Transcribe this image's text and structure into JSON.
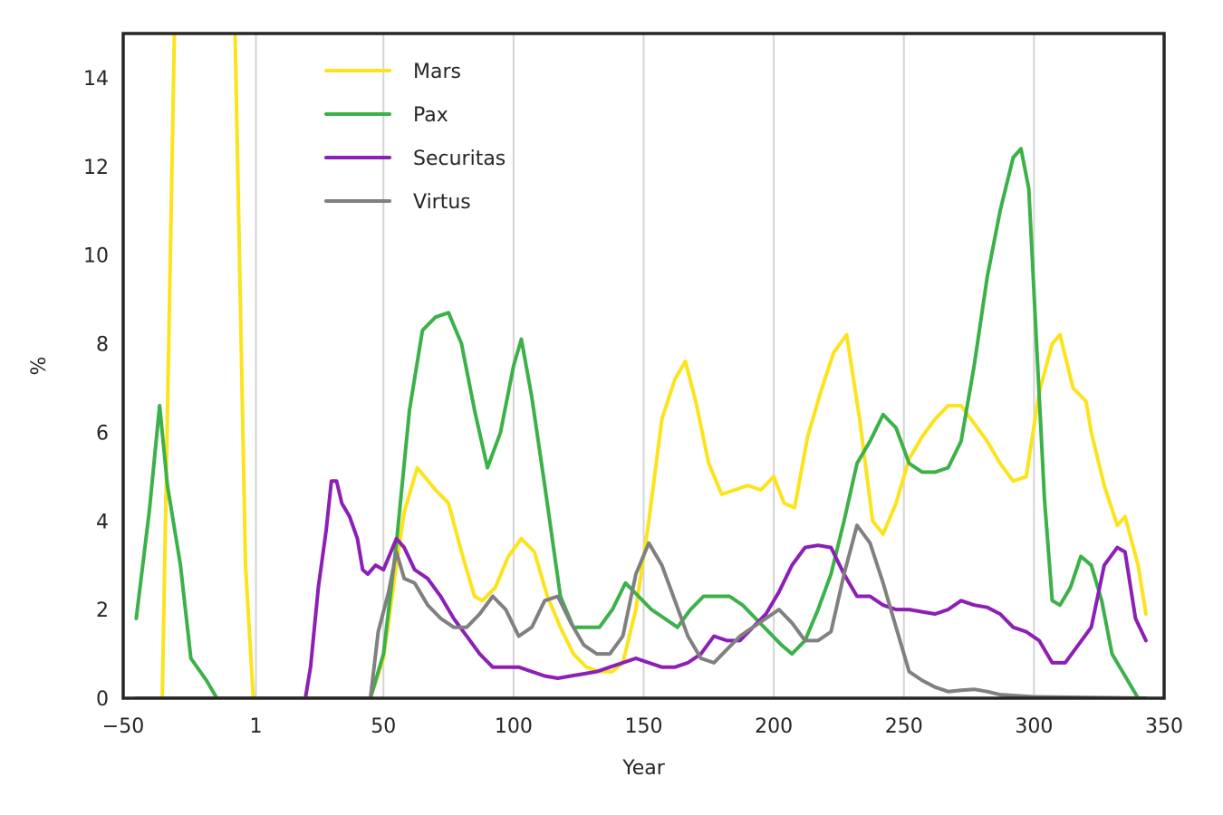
{
  "chart_data": {
    "type": "line",
    "xlabel": "Year",
    "ylabel": "%",
    "xlim": [
      -50,
      350
    ],
    "ylim": [
      0,
      15
    ],
    "xticks": [
      -50,
      1,
      50,
      100,
      150,
      200,
      250,
      300,
      350
    ],
    "xtick_labels": [
      "−50",
      "1",
      "50",
      "100",
      "150",
      "200",
      "250",
      "300",
      "350"
    ],
    "yticks": [
      0,
      2,
      4,
      6,
      8,
      10,
      12,
      14
    ],
    "ytick_labels": [
      "0",
      "2",
      "4",
      "6",
      "8",
      "10",
      "12",
      "14"
    ],
    "grid": {
      "vertical": true,
      "horizontal": false
    },
    "legend_position": "top-left",
    "series": [
      {
        "name": "Mars",
        "color": "#fce31c",
        "points": [
          [
            -45,
            0
          ],
          [
            -35,
            0
          ],
          [
            -30,
            16
          ],
          [
            -20,
            30
          ],
          [
            -10,
            30
          ],
          [
            -7,
            15
          ],
          [
            -3,
            3
          ],
          [
            0,
            0
          ],
          [
            20,
            0
          ],
          [
            45,
            0
          ],
          [
            50,
            0.9
          ],
          [
            55,
            3
          ],
          [
            58,
            4.2
          ],
          [
            63,
            5.2
          ],
          [
            70,
            4.7
          ],
          [
            75,
            4.4
          ],
          [
            80,
            3.3
          ],
          [
            85,
            2.3
          ],
          [
            88,
            2.2
          ],
          [
            93,
            2.5
          ],
          [
            98,
            3.2
          ],
          [
            103,
            3.6
          ],
          [
            108,
            3.3
          ],
          [
            113,
            2.3
          ],
          [
            118,
            1.6
          ],
          [
            123,
            1.0
          ],
          [
            128,
            0.7
          ],
          [
            133,
            0.6
          ],
          [
            138,
            0.6
          ],
          [
            142,
            0.8
          ],
          [
            147,
            2.0
          ],
          [
            152,
            4.0
          ],
          [
            157,
            6.3
          ],
          [
            162,
            7.2
          ],
          [
            166,
            7.6
          ],
          [
            170,
            6.7
          ],
          [
            175,
            5.3
          ],
          [
            180,
            4.6
          ],
          [
            185,
            4.7
          ],
          [
            190,
            4.8
          ],
          [
            195,
            4.7
          ],
          [
            200,
            5.0
          ],
          [
            204,
            4.4
          ],
          [
            208,
            4.3
          ],
          [
            213,
            5.9
          ],
          [
            218,
            6.9
          ],
          [
            223,
            7.8
          ],
          [
            228,
            8.2
          ],
          [
            233,
            6.3
          ],
          [
            238,
            4.0
          ],
          [
            242,
            3.7
          ],
          [
            247,
            4.4
          ],
          [
            252,
            5.4
          ],
          [
            257,
            5.9
          ],
          [
            262,
            6.3
          ],
          [
            267,
            6.6
          ],
          [
            272,
            6.6
          ],
          [
            277,
            6.2
          ],
          [
            282,
            5.8
          ],
          [
            287,
            5.3
          ],
          [
            292,
            4.9
          ],
          [
            297,
            5.0
          ],
          [
            302,
            6.9
          ],
          [
            307,
            8.0
          ],
          [
            310,
            8.2
          ],
          [
            315,
            7.0
          ],
          [
            320,
            6.7
          ],
          [
            322,
            6.0
          ],
          [
            327,
            4.8
          ],
          [
            332,
            3.9
          ],
          [
            335,
            4.1
          ],
          [
            340,
            3.0
          ],
          [
            343,
            1.9
          ]
        ]
      },
      {
        "name": "Pax",
        "color": "#3cb149",
        "points": [
          [
            -45,
            1.8
          ],
          [
            -40,
            4.2
          ],
          [
            -36,
            6.6
          ],
          [
            -33,
            4.8
          ],
          [
            -28,
            3.0
          ],
          [
            -24,
            0.9
          ],
          [
            -18,
            0.4
          ],
          [
            -14,
            0
          ],
          [
            20,
            0
          ],
          [
            45,
            0
          ],
          [
            50,
            1.0
          ],
          [
            55,
            3.5
          ],
          [
            60,
            6.5
          ],
          [
            65,
            8.3
          ],
          [
            70,
            8.6
          ],
          [
            75,
            8.7
          ],
          [
            80,
            8.0
          ],
          [
            85,
            6.5
          ],
          [
            90,
            5.2
          ],
          [
            95,
            6.0
          ],
          [
            100,
            7.5
          ],
          [
            103,
            8.1
          ],
          [
            107,
            6.8
          ],
          [
            112,
            4.8
          ],
          [
            118,
            2.3
          ],
          [
            123,
            1.6
          ],
          [
            128,
            1.6
          ],
          [
            133,
            1.6
          ],
          [
            138,
            2.0
          ],
          [
            143,
            2.6
          ],
          [
            148,
            2.3
          ],
          [
            153,
            2.0
          ],
          [
            158,
            1.8
          ],
          [
            163,
            1.6
          ],
          [
            168,
            2.0
          ],
          [
            173,
            2.3
          ],
          [
            178,
            2.3
          ],
          [
            183,
            2.3
          ],
          [
            188,
            2.1
          ],
          [
            193,
            1.8
          ],
          [
            198,
            1.5
          ],
          [
            203,
            1.2
          ],
          [
            207,
            1.0
          ],
          [
            212,
            1.3
          ],
          [
            217,
            2.0
          ],
          [
            222,
            2.8
          ],
          [
            227,
            4.0
          ],
          [
            232,
            5.3
          ],
          [
            237,
            5.8
          ],
          [
            242,
            6.4
          ],
          [
            247,
            6.1
          ],
          [
            252,
            5.3
          ],
          [
            257,
            5.1
          ],
          [
            262,
            5.1
          ],
          [
            267,
            5.2
          ],
          [
            272,
            5.8
          ],
          [
            277,
            7.5
          ],
          [
            282,
            9.5
          ],
          [
            287,
            11.0
          ],
          [
            292,
            12.2
          ],
          [
            295,
            12.4
          ],
          [
            298,
            11.5
          ],
          [
            301,
            8.0
          ],
          [
            304,
            4.5
          ],
          [
            307,
            2.2
          ],
          [
            310,
            2.1
          ],
          [
            314,
            2.5
          ],
          [
            318,
            3.2
          ],
          [
            322,
            3.0
          ],
          [
            326,
            2.2
          ],
          [
            330,
            1.0
          ],
          [
            335,
            0.5
          ],
          [
            340,
            0
          ],
          [
            343,
            0
          ]
        ]
      },
      {
        "name": "Securitas",
        "color": "#8c1fb5",
        "points": [
          [
            -45,
            0
          ],
          [
            20,
            0
          ],
          [
            22,
            0.7
          ],
          [
            25,
            2.5
          ],
          [
            28,
            3.8
          ],
          [
            30,
            4.9
          ],
          [
            32,
            4.9
          ],
          [
            34,
            4.4
          ],
          [
            37,
            4.1
          ],
          [
            40,
            3.6
          ],
          [
            42,
            2.9
          ],
          [
            44,
            2.8
          ],
          [
            47,
            3.0
          ],
          [
            50,
            2.9
          ],
          [
            55,
            3.6
          ],
          [
            58,
            3.4
          ],
          [
            62,
            2.9
          ],
          [
            67,
            2.7
          ],
          [
            72,
            2.3
          ],
          [
            77,
            1.8
          ],
          [
            82,
            1.4
          ],
          [
            87,
            1.0
          ],
          [
            92,
            0.7
          ],
          [
            97,
            0.7
          ],
          [
            102,
            0.7
          ],
          [
            107,
            0.6
          ],
          [
            112,
            0.5
          ],
          [
            117,
            0.45
          ],
          [
            122,
            0.5
          ],
          [
            127,
            0.55
          ],
          [
            132,
            0.6
          ],
          [
            137,
            0.7
          ],
          [
            142,
            0.8
          ],
          [
            147,
            0.9
          ],
          [
            152,
            0.8
          ],
          [
            157,
            0.7
          ],
          [
            162,
            0.7
          ],
          [
            167,
            0.8
          ],
          [
            172,
            1.0
          ],
          [
            177,
            1.4
          ],
          [
            182,
            1.3
          ],
          [
            187,
            1.3
          ],
          [
            192,
            1.6
          ],
          [
            197,
            1.9
          ],
          [
            202,
            2.4
          ],
          [
            207,
            3.0
          ],
          [
            212,
            3.4
          ],
          [
            217,
            3.45
          ],
          [
            222,
            3.4
          ],
          [
            227,
            2.8
          ],
          [
            232,
            2.3
          ],
          [
            237,
            2.3
          ],
          [
            242,
            2.1
          ],
          [
            247,
            2.0
          ],
          [
            252,
            2.0
          ],
          [
            257,
            1.95
          ],
          [
            262,
            1.9
          ],
          [
            267,
            2.0
          ],
          [
            272,
            2.2
          ],
          [
            277,
            2.1
          ],
          [
            282,
            2.05
          ],
          [
            287,
            1.9
          ],
          [
            292,
            1.6
          ],
          [
            297,
            1.5
          ],
          [
            302,
            1.3
          ],
          [
            307,
            0.8
          ],
          [
            312,
            0.8
          ],
          [
            317,
            1.2
          ],
          [
            322,
            1.6
          ],
          [
            327,
            3.0
          ],
          [
            332,
            3.4
          ],
          [
            335,
            3.3
          ],
          [
            339,
            1.8
          ],
          [
            343,
            1.3
          ]
        ]
      },
      {
        "name": "Virtus",
        "color": "#808080",
        "points": [
          [
            -45,
            0
          ],
          [
            20,
            0
          ],
          [
            45,
            0
          ],
          [
            48,
            1.5
          ],
          [
            52,
            2.4
          ],
          [
            55,
            3.3
          ],
          [
            58,
            2.7
          ],
          [
            62,
            2.6
          ],
          [
            67,
            2.1
          ],
          [
            72,
            1.8
          ],
          [
            77,
            1.6
          ],
          [
            82,
            1.6
          ],
          [
            87,
            1.9
          ],
          [
            92,
            2.3
          ],
          [
            97,
            2.0
          ],
          [
            102,
            1.4
          ],
          [
            107,
            1.6
          ],
          [
            112,
            2.2
          ],
          [
            117,
            2.3
          ],
          [
            122,
            1.7
          ],
          [
            127,
            1.2
          ],
          [
            132,
            1.0
          ],
          [
            137,
            1.0
          ],
          [
            142,
            1.4
          ],
          [
            147,
            2.8
          ],
          [
            152,
            3.5
          ],
          [
            157,
            3.0
          ],
          [
            162,
            2.2
          ],
          [
            167,
            1.4
          ],
          [
            172,
            0.9
          ],
          [
            177,
            0.8
          ],
          [
            182,
            1.1
          ],
          [
            187,
            1.4
          ],
          [
            192,
            1.6
          ],
          [
            197,
            1.8
          ],
          [
            202,
            2.0
          ],
          [
            207,
            1.7
          ],
          [
            212,
            1.3
          ],
          [
            217,
            1.3
          ],
          [
            222,
            1.5
          ],
          [
            227,
            2.8
          ],
          [
            232,
            3.9
          ],
          [
            237,
            3.5
          ],
          [
            242,
            2.6
          ],
          [
            247,
            1.6
          ],
          [
            252,
            0.6
          ],
          [
            257,
            0.4
          ],
          [
            262,
            0.25
          ],
          [
            267,
            0.15
          ],
          [
            272,
            0.18
          ],
          [
            277,
            0.2
          ],
          [
            282,
            0.15
          ],
          [
            287,
            0.08
          ],
          [
            300,
            0.03
          ],
          [
            343,
            0
          ]
        ]
      }
    ]
  }
}
